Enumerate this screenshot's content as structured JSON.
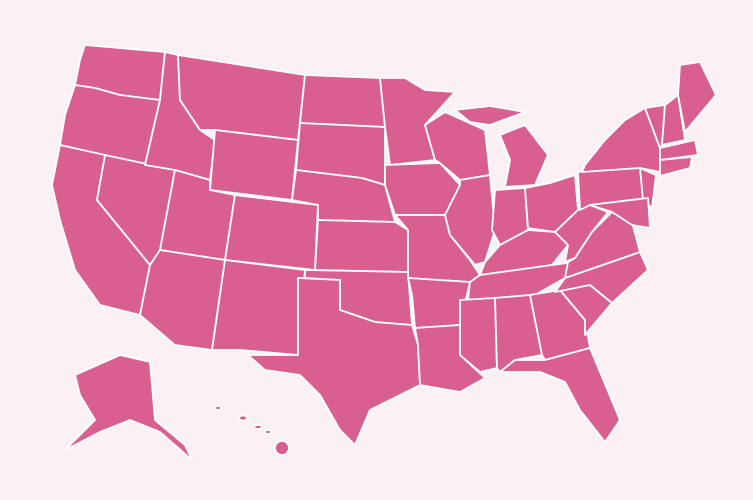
{
  "map": {
    "background_color": "#fbf0f4",
    "fill_color": "#d95f91",
    "border_color": "#ffffff"
  }
}
